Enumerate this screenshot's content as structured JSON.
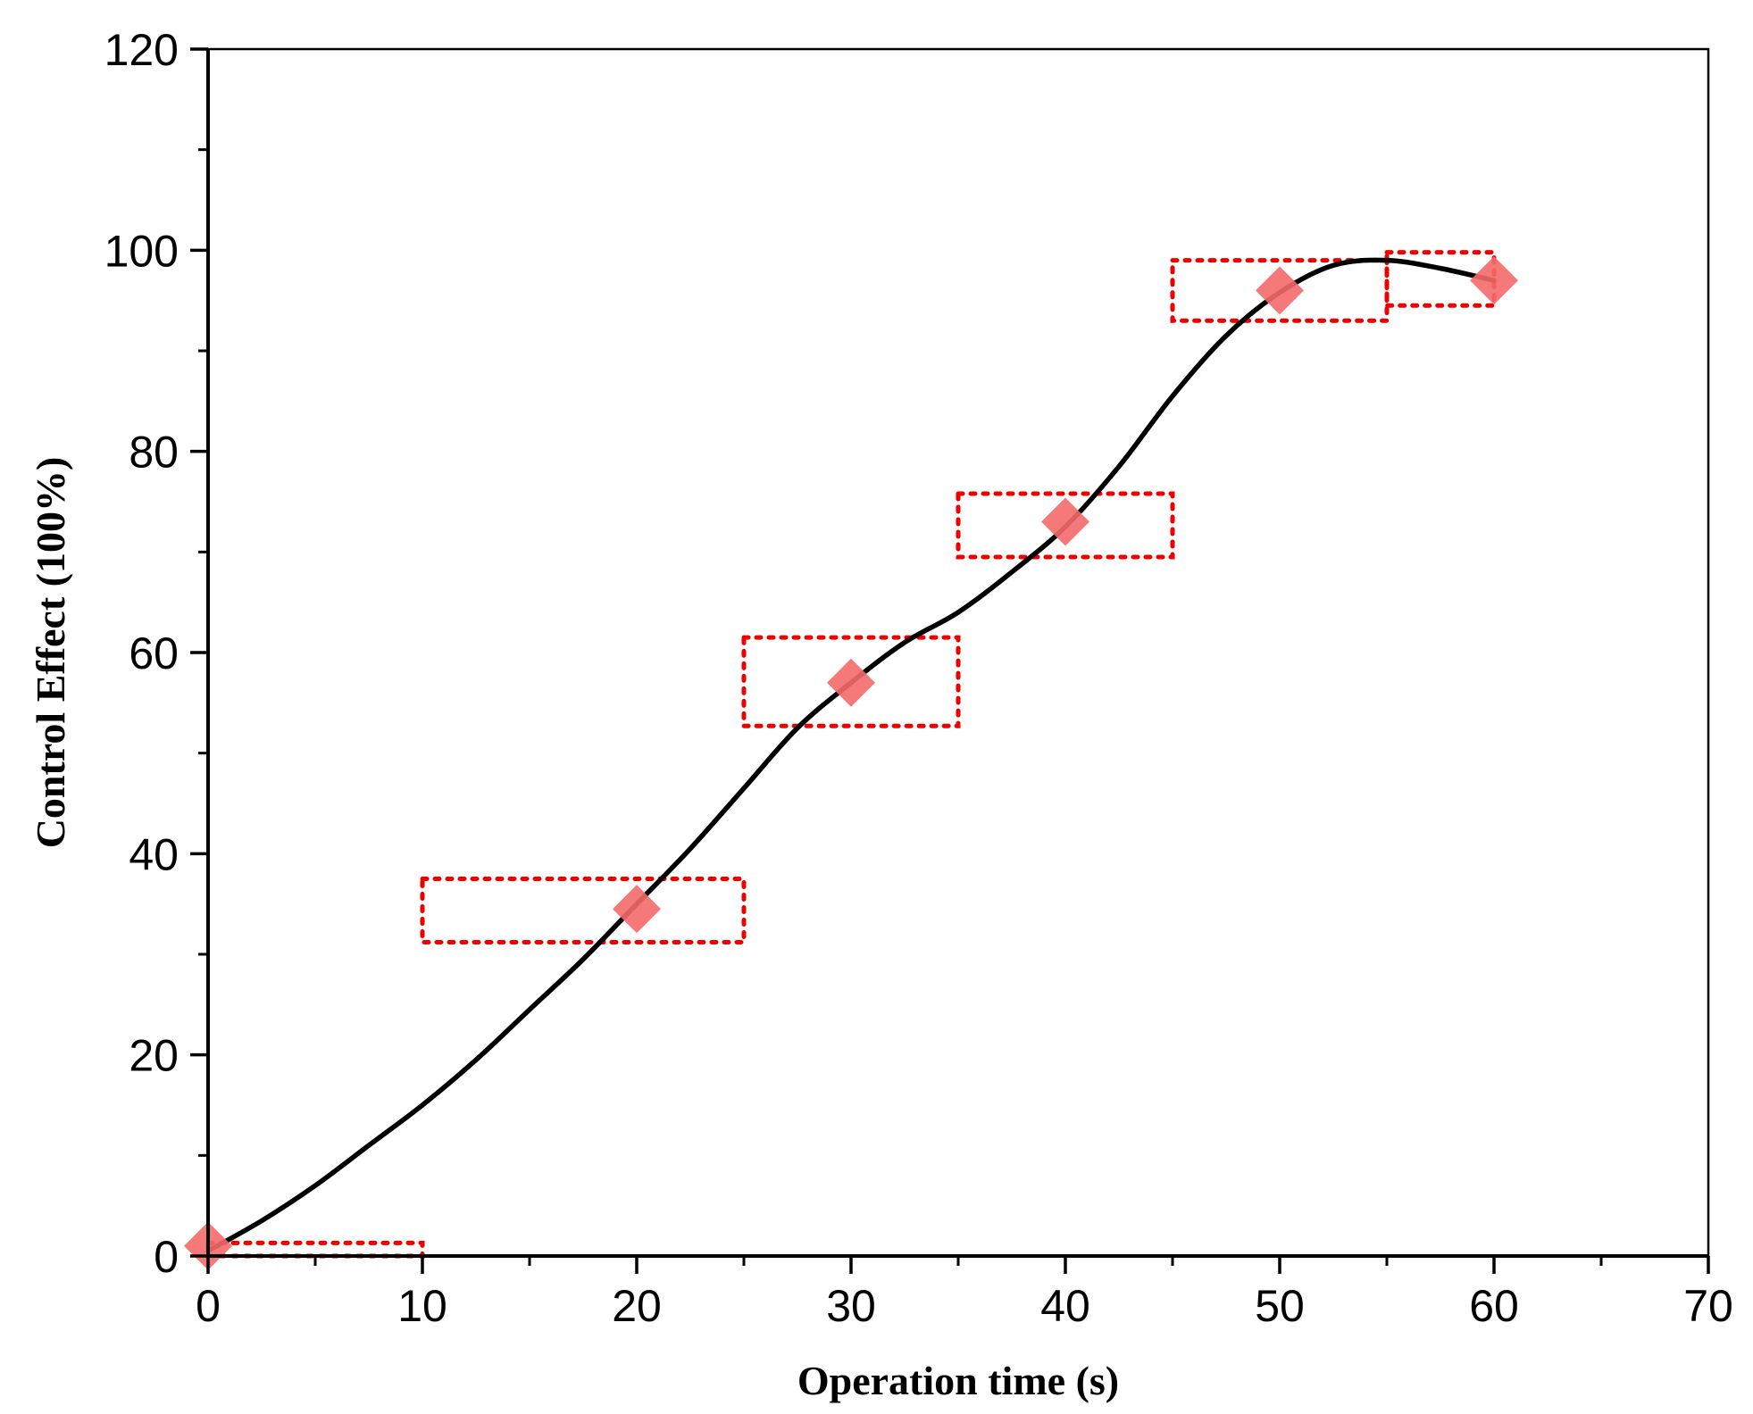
{
  "chart_data": {
    "type": "line",
    "title": "",
    "xlabel": "Operation time (s)",
    "ylabel": "Control Effect (100%)",
    "xlim": [
      0,
      70
    ],
    "ylim": [
      0,
      120
    ],
    "xticks": [
      0,
      10,
      20,
      30,
      40,
      50,
      60,
      70
    ],
    "yticks": [
      0,
      20,
      40,
      60,
      80,
      100,
      120
    ],
    "grid": false,
    "legend": "none",
    "series": [
      {
        "kind": "curve",
        "color": "#000000",
        "x": [
          0,
          2.5,
          5,
          7.5,
          10,
          12.5,
          15,
          17.5,
          20,
          22.5,
          25,
          27.5,
          30,
          32.5,
          35,
          37.5,
          40,
          42.5,
          45,
          47.5,
          50,
          52.5,
          55,
          57.5,
          60
        ],
        "y": [
          0.5,
          3.5,
          7,
          11,
          15,
          19.5,
          24.5,
          29.5,
          35,
          40.5,
          46.5,
          52.5,
          57,
          61,
          64,
          68,
          72.5,
          78.5,
          85.5,
          91.5,
          95.8,
          98.5,
          99,
          98.2,
          97
        ]
      },
      {
        "kind": "markers",
        "marker": "diamond",
        "color": "#f46a6a",
        "x": [
          0,
          20,
          30,
          40,
          50,
          60
        ],
        "y": [
          1,
          34.5,
          57,
          73,
          96,
          97
        ]
      }
    ],
    "bands": {
      "style": "dotted",
      "color": "#ee0000",
      "rects": [
        {
          "x": [
            0,
            10
          ],
          "y": [
            0,
            1.3
          ]
        },
        {
          "x": [
            10,
            25
          ],
          "y": [
            31.2,
            37.5
          ]
        },
        {
          "x": [
            25,
            35
          ],
          "y": [
            52.7,
            61.5
          ]
        },
        {
          "x": [
            35,
            45
          ],
          "y": [
            69.5,
            75.8
          ]
        },
        {
          "x": [
            45,
            55
          ],
          "y": [
            93,
            99
          ]
        },
        {
          "x": [
            55,
            60
          ],
          "y": [
            94.5,
            99.8
          ]
        }
      ]
    }
  }
}
